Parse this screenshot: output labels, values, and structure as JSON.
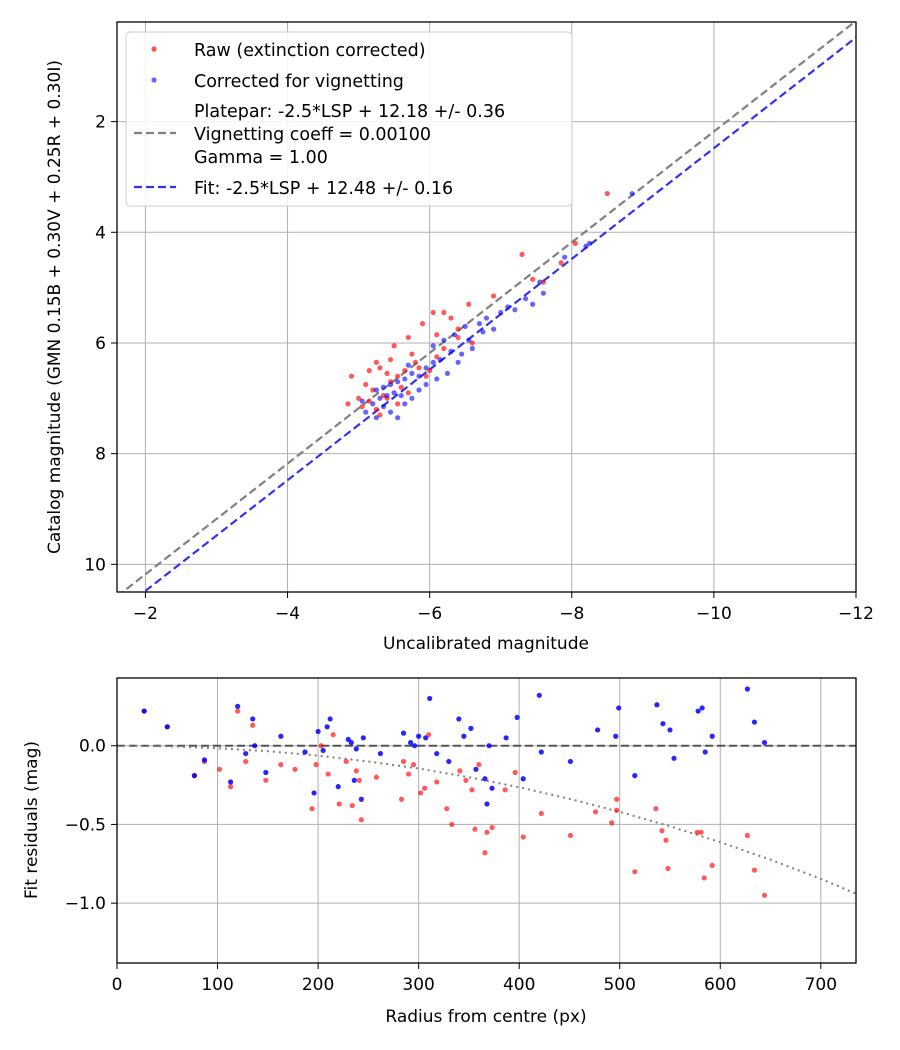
{
  "chart_data": [
    {
      "type": "scatter",
      "xlabel": "Uncalibrated magnitude",
      "ylabel": "Catalog magnitude (GMN 0.15B + 0.30V + 0.25R + 0.30I)",
      "xlim": [
        -1.6,
        -12.0
      ],
      "ylim": [
        10.5,
        0.2
      ],
      "xticks": [
        -2,
        -4,
        -6,
        -8,
        -10,
        -12
      ],
      "xtick_labels": [
        "−2",
        "−4",
        "−6",
        "−8",
        "−10",
        "−12"
      ],
      "yticks": [
        2,
        4,
        6,
        8,
        10
      ],
      "ytick_labels": [
        "2",
        "4",
        "6",
        "8",
        "10"
      ],
      "grid": true,
      "legend_position": "top-left",
      "colors": {
        "raw": "#ff0000",
        "corrected": "#0000ff",
        "platepar": "#808080",
        "fit": "#3333ee"
      },
      "legend": [
        {
          "label": "Raw (extinction corrected)",
          "kind": "point",
          "color": "#ff0000"
        },
        {
          "label": "Corrected for vignetting",
          "kind": "point",
          "color": "#0000ff"
        },
        {
          "label": "Platepar: -2.5*LSP + 12.18 +/- 0.36",
          "kind": "dashed",
          "color": "#808080"
        },
        {
          "label": "Vignetting coeff = 0.00100",
          "kind": "none",
          "color": "#808080"
        },
        {
          "label": "Gamma = 1.00",
          "kind": "none",
          "color": "#808080"
        },
        {
          "label": "Fit: -2.5*LSP + 12.48 +/- 0.16",
          "kind": "dashed",
          "color": "#3333ee"
        }
      ],
      "lines": [
        {
          "name": "Platepar",
          "color": "#808080",
          "x": [
            -1.6,
            -12.0
          ],
          "y": [
            10.58,
            0.18
          ]
        },
        {
          "name": "Fit",
          "color": "#3333ee",
          "x": [
            -1.6,
            -12.0
          ],
          "y": [
            10.88,
            0.48
          ]
        }
      ],
      "series": [
        {
          "name": "Raw (extinction corrected)",
          "color": "#ff0000",
          "points": [
            [
              -8.5,
              3.3
            ],
            [
              -7.3,
              4.4
            ],
            [
              -7.85,
              4.55
            ],
            [
              -8.05,
              4.2
            ],
            [
              -7.6,
              4.9
            ],
            [
              -7.45,
              4.85
            ],
            [
              -6.9,
              5.15
            ],
            [
              -6.55,
              5.3
            ],
            [
              -6.2,
              5.45
            ],
            [
              -6.3,
              5.55
            ],
            [
              -6.05,
              5.45
            ],
            [
              -5.9,
              5.65
            ],
            [
              -6.4,
              5.75
            ],
            [
              -6.1,
              5.85
            ],
            [
              -5.7,
              5.9
            ],
            [
              -5.75,
              6.2
            ],
            [
              -5.5,
              6.05
            ],
            [
              -6.2,
              6.1
            ],
            [
              -5.45,
              6.3
            ],
            [
              -5.25,
              6.35
            ],
            [
              -5.15,
              6.5
            ],
            [
              -5.3,
              6.45
            ],
            [
              -5.4,
              6.55
            ],
            [
              -5.55,
              6.6
            ],
            [
              -5.85,
              6.45
            ],
            [
              -6.0,
              6.5
            ],
            [
              -5.95,
              6.6
            ],
            [
              -4.9,
              6.6
            ],
            [
              -5.1,
              6.75
            ],
            [
              -5.2,
              6.85
            ],
            [
              -5.45,
              6.7
            ],
            [
              -5.6,
              6.8
            ],
            [
              -5.7,
              6.9
            ],
            [
              -5.15,
              7.05
            ],
            [
              -4.85,
              7.1
            ],
            [
              -5.05,
              7.15
            ],
            [
              -5.25,
              7.2
            ],
            [
              -5.4,
              7.0
            ],
            [
              -5.55,
              7.1
            ],
            [
              -5.3,
              7.3
            ],
            [
              -5.65,
              6.5
            ],
            [
              -5.8,
              6.35
            ],
            [
              -6.1,
              6.25
            ],
            [
              -6.6,
              6.0
            ],
            [
              -6.4,
              5.9
            ],
            [
              -5.35,
              6.95
            ],
            [
              -5.0,
              7.0
            ]
          ]
        },
        {
          "name": "Corrected for vignetting",
          "color": "#0000ff",
          "points": [
            [
              -8.85,
              3.3
            ],
            [
              -8.25,
              4.2
            ],
            [
              -8.2,
              4.25
            ],
            [
              -7.9,
              4.45
            ],
            [
              -7.55,
              4.9
            ],
            [
              -7.6,
              5.1
            ],
            [
              -7.45,
              5.3
            ],
            [
              -7.35,
              5.2
            ],
            [
              -7.1,
              5.35
            ],
            [
              -7.0,
              5.45
            ],
            [
              -6.8,
              5.55
            ],
            [
              -6.7,
              5.65
            ],
            [
              -6.75,
              5.8
            ],
            [
              -6.5,
              5.7
            ],
            [
              -6.35,
              5.85
            ],
            [
              -6.2,
              5.95
            ],
            [
              -6.05,
              6.05
            ],
            [
              -6.3,
              6.15
            ],
            [
              -6.45,
              6.2
            ],
            [
              -6.15,
              6.3
            ],
            [
              -6.05,
              6.35
            ],
            [
              -5.95,
              6.45
            ],
            [
              -6.25,
              6.55
            ],
            [
              -5.85,
              6.6
            ],
            [
              -5.75,
              6.55
            ],
            [
              -5.65,
              6.65
            ],
            [
              -5.55,
              6.7
            ],
            [
              -5.45,
              6.75
            ],
            [
              -5.35,
              6.8
            ],
            [
              -5.25,
              6.85
            ],
            [
              -5.5,
              6.9
            ],
            [
              -5.6,
              6.95
            ],
            [
              -5.4,
              6.95
            ],
            [
              -5.75,
              7.0
            ],
            [
              -5.85,
              6.85
            ],
            [
              -5.3,
              7.0
            ],
            [
              -5.2,
              7.1
            ],
            [
              -5.35,
              7.15
            ],
            [
              -5.45,
              7.25
            ],
            [
              -5.55,
              7.35
            ],
            [
              -5.1,
              7.25
            ],
            [
              -5.25,
              7.35
            ],
            [
              -5.65,
              7.1
            ],
            [
              -5.95,
              6.75
            ],
            [
              -6.1,
              6.65
            ],
            [
              -6.4,
              6.35
            ],
            [
              -6.6,
              6.1
            ],
            [
              -6.55,
              5.95
            ],
            [
              -6.9,
              5.75
            ],
            [
              -7.2,
              5.4
            ],
            [
              -5.7,
              6.4
            ],
            [
              -5.05,
              7.05
            ]
          ]
        }
      ]
    },
    {
      "type": "scatter",
      "xlabel": "Radius from centre (px)",
      "ylabel": "Fit residuals (mag)",
      "xlim": [
        0,
        735
      ],
      "ylim": [
        -1.38,
        0.43
      ],
      "xticks": [
        0,
        100,
        200,
        300,
        400,
        500,
        600,
        700
      ],
      "xtick_labels": [
        "0",
        "100",
        "200",
        "300",
        "400",
        "500",
        "600",
        "700"
      ],
      "yticks": [
        0.0,
        -0.5,
        -1.0
      ],
      "ytick_labels": [
        "0.0",
        "−0.5",
        "−1.0"
      ],
      "grid": true,
      "zero_line": {
        "y": 0.0,
        "color": "#555555",
        "style": "dashed"
      },
      "vignetting_curve": {
        "style": "dotted",
        "color": "#808080",
        "x": [
          0,
          50,
          100,
          150,
          200,
          250,
          300,
          350,
          400,
          450,
          500,
          550,
          600,
          650,
          700,
          735
        ],
        "y": [
          0.0,
          -0.004,
          -0.016,
          -0.035,
          -0.063,
          -0.1,
          -0.145,
          -0.2,
          -0.264,
          -0.337,
          -0.42,
          -0.512,
          -0.613,
          -0.724,
          -0.845,
          -0.94
        ]
      },
      "series": [
        {
          "name": "Raw (extinction corrected)",
          "color": "#ff0000",
          "points": [
            [
              27,
              0.22
            ],
            [
              50,
              0.12
            ],
            [
              77,
              -0.19
            ],
            [
              87,
              -0.1
            ],
            [
              102,
              -0.15
            ],
            [
              113,
              -0.26
            ],
            [
              120,
              0.22
            ],
            [
              128,
              -0.1
            ],
            [
              135,
              0.13
            ],
            [
              148,
              -0.22
            ],
            [
              163,
              -0.12
            ],
            [
              177,
              -0.15
            ],
            [
              194,
              -0.4
            ],
            [
              198,
              -0.12
            ],
            [
              203,
              0.0
            ],
            [
              210,
              -0.18
            ],
            [
              215,
              0.07
            ],
            [
              221,
              -0.37
            ],
            [
              228,
              -0.1
            ],
            [
              234,
              -0.38
            ],
            [
              238,
              -0.16
            ],
            [
              241,
              -0.22
            ],
            [
              243,
              -0.47
            ],
            [
              258,
              -0.2
            ],
            [
              283,
              -0.34
            ],
            [
              285,
              -0.1
            ],
            [
              290,
              -0.18
            ],
            [
              295,
              -0.12
            ],
            [
              302,
              -0.3
            ],
            [
              306,
              -0.27
            ],
            [
              310,
              0.07
            ],
            [
              318,
              -0.23
            ],
            [
              328,
              -0.4
            ],
            [
              333,
              -0.5
            ],
            [
              341,
              -0.16
            ],
            [
              347,
              -0.22
            ],
            [
              353,
              -0.28
            ],
            [
              356,
              -0.53
            ],
            [
              360,
              -0.12
            ],
            [
              366,
              -0.68
            ],
            [
              368,
              -0.55
            ],
            [
              373,
              -0.52
            ],
            [
              386,
              -0.28
            ],
            [
              396,
              -0.17
            ],
            [
              404,
              -0.58
            ],
            [
              422,
              -0.43
            ],
            [
              451,
              -0.57
            ],
            [
              476,
              -0.42
            ],
            [
              492,
              -0.49
            ],
            [
              497,
              -0.41
            ],
            [
              497,
              -0.34
            ],
            [
              515,
              -0.8
            ],
            [
              536,
              -0.4
            ],
            [
              542,
              -0.54
            ],
            [
              546,
              -0.6
            ],
            [
              548,
              -0.78
            ],
            [
              577,
              -0.55
            ],
            [
              581,
              -0.55
            ],
            [
              584,
              -0.84
            ],
            [
              592,
              -0.76
            ],
            [
              627,
              -0.57
            ],
            [
              634,
              -0.79
            ],
            [
              644,
              -0.95
            ]
          ]
        },
        {
          "name": "Corrected for vignetting",
          "color": "#0000ff",
          "points": [
            [
              27,
              0.22
            ],
            [
              50,
              0.12
            ],
            [
              77,
              -0.19
            ],
            [
              87,
              -0.09
            ],
            [
              113,
              -0.23
            ],
            [
              120,
              0.25
            ],
            [
              128,
              -0.05
            ],
            [
              135,
              0.17
            ],
            [
              137,
              0.0
            ],
            [
              148,
              -0.17
            ],
            [
              163,
              0.06
            ],
            [
              187,
              -0.04
            ],
            [
              196,
              -0.3
            ],
            [
              200,
              0.09
            ],
            [
              205,
              -0.03
            ],
            [
              209,
              0.12
            ],
            [
              212,
              0.17
            ],
            [
              220,
              -0.26
            ],
            [
              230,
              0.04
            ],
            [
              233,
              0.02
            ],
            [
              236,
              -0.22
            ],
            [
              238,
              -0.02
            ],
            [
              243,
              -0.34
            ],
            [
              245,
              0.05
            ],
            [
              262,
              -0.05
            ],
            [
              285,
              0.08
            ],
            [
              292,
              0.02
            ],
            [
              296,
              0.0
            ],
            [
              300,
              0.06
            ],
            [
              307,
              0.05
            ],
            [
              311,
              0.3
            ],
            [
              318,
              -0.05
            ],
            [
              330,
              -0.1
            ],
            [
              340,
              0.17
            ],
            [
              345,
              0.06
            ],
            [
              352,
              0.11
            ],
            [
              357,
              -0.15
            ],
            [
              366,
              -0.21
            ],
            [
              368,
              -0.37
            ],
            [
              370,
              0.0
            ],
            [
              373,
              -0.27
            ],
            [
              387,
              0.05
            ],
            [
              398,
              0.18
            ],
            [
              404,
              -0.21
            ],
            [
              420,
              0.32
            ],
            [
              422,
              -0.04
            ],
            [
              451,
              -0.1
            ],
            [
              478,
              0.1
            ],
            [
              496,
              0.06
            ],
            [
              499,
              0.24
            ],
            [
              515,
              -0.19
            ],
            [
              537,
              0.26
            ],
            [
              543,
              0.14
            ],
            [
              550,
              0.1
            ],
            [
              554,
              -0.08
            ],
            [
              578,
              0.22
            ],
            [
              582,
              0.24
            ],
            [
              585,
              -0.04
            ],
            [
              592,
              0.06
            ],
            [
              627,
              0.36
            ],
            [
              634,
              0.15
            ],
            [
              644,
              0.02
            ]
          ]
        }
      ]
    }
  ]
}
